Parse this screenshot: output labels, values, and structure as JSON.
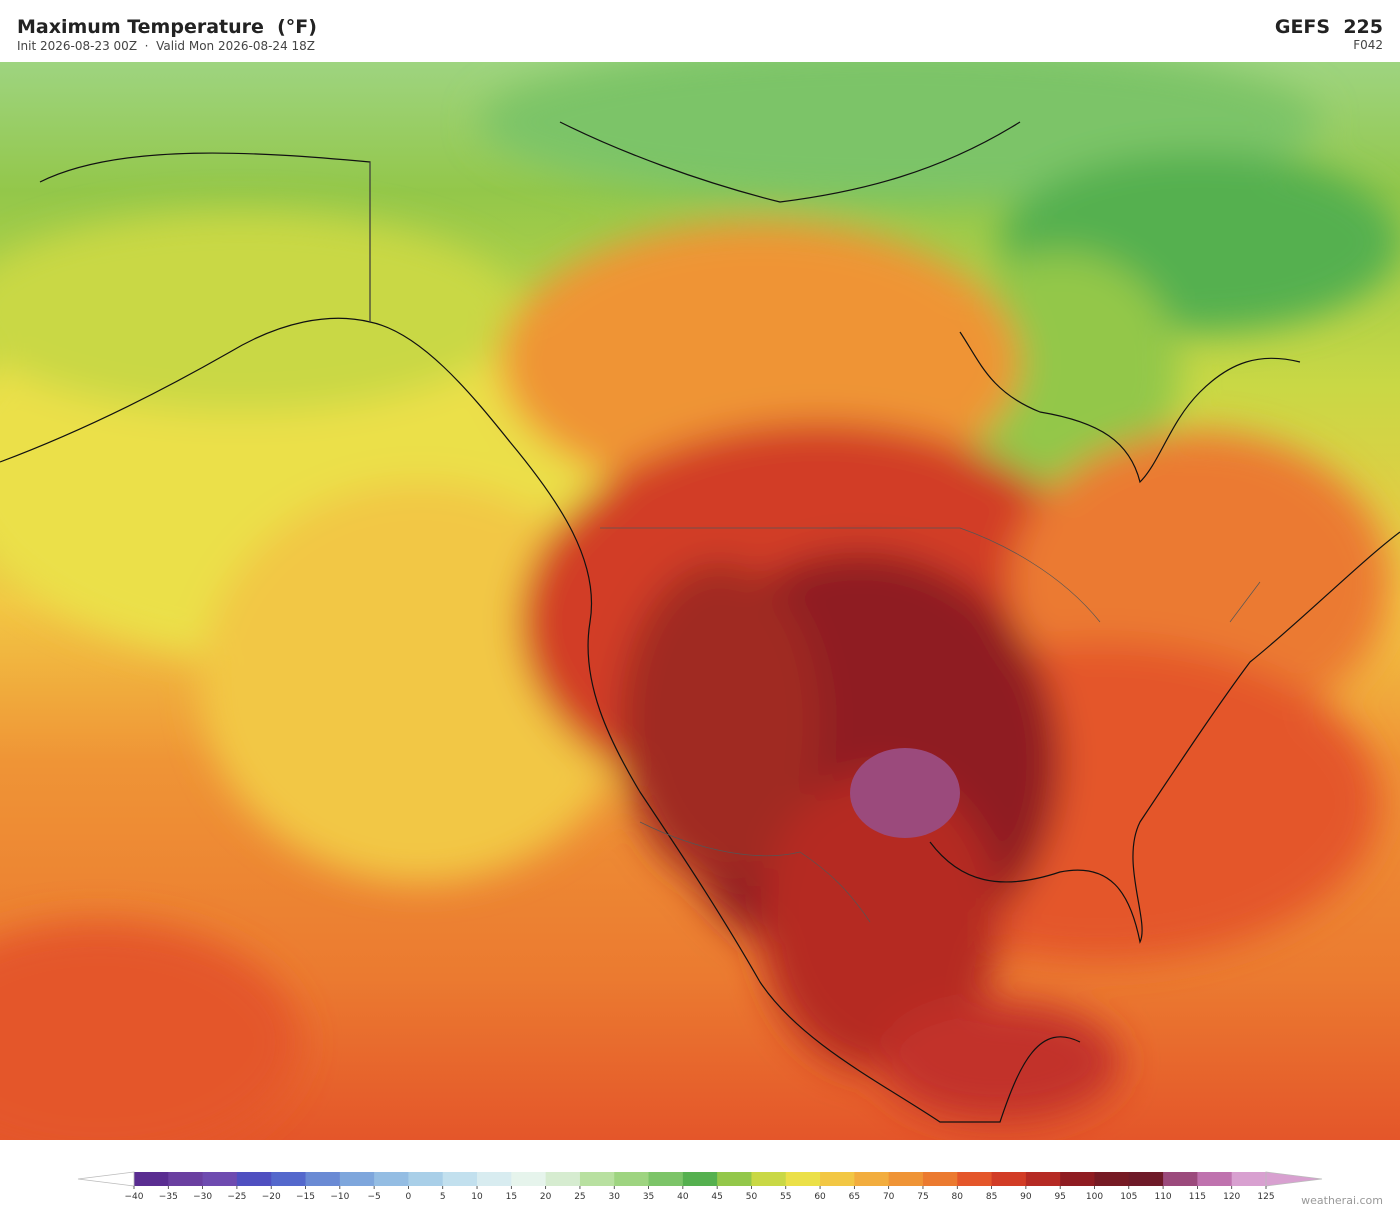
{
  "header": {
    "title": "Maximum Temperature  (°F)",
    "subtitle": "Init 2026-08-23 00Z  ·  Valid Mon 2026-08-24 18Z",
    "model": "GEFS  225",
    "forecast_hour": "F042"
  },
  "colorbar": {
    "ticks": [
      {
        "value": -40,
        "label": "−40"
      },
      {
        "value": -35,
        "label": "−35"
      },
      {
        "value": -30,
        "label": "−30"
      },
      {
        "value": -25,
        "label": "−25"
      },
      {
        "value": -20,
        "label": "−20"
      },
      {
        "value": -15,
        "label": "−15"
      },
      {
        "value": -10,
        "label": "−10"
      },
      {
        "value": -5,
        "label": "−5"
      },
      0,
      5,
      10,
      15,
      20,
      25,
      30,
      35,
      40,
      45,
      50,
      55,
      60,
      65,
      70,
      75,
      80,
      85,
      90,
      95,
      100,
      105,
      110,
      115,
      120,
      125
    ],
    "colors": [
      "#5a2d91",
      "#6a3fa0",
      "#6e4bb0",
      "#4f4fc0",
      "#5468cc",
      "#6a8ad4",
      "#7ea6dc",
      "#94bde3",
      "#a9cfe8",
      "#c2e0ee",
      "#d8ecf0",
      "#e6f4ec",
      "#d6ecd0",
      "#b8e0a0",
      "#9ed480",
      "#7cc468",
      "#55b04f",
      "#93c74a",
      "#c9d845",
      "#ebe048",
      "#f2c744",
      "#f2ad3e",
      "#ef9436",
      "#eb7a30",
      "#e4562a",
      "#d23c26",
      "#b52a24",
      "#8f1c22",
      "#761a24",
      "#6e1a28",
      "#9b4a7c",
      "#bf72ae",
      "#d8a0d0"
    ],
    "under_color": "#ffffff",
    "over_color": "#d8a0d0"
  },
  "watermark": "weatherai.com"
}
